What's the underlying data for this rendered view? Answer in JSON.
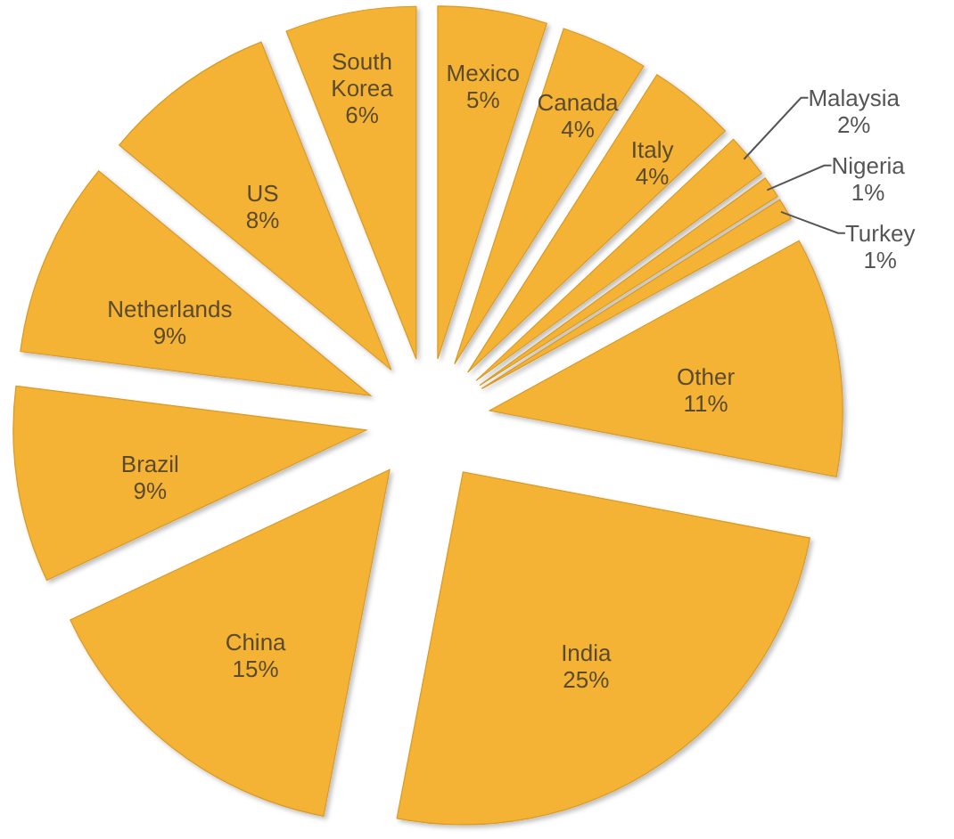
{
  "chart_data": {
    "type": "pie",
    "categories": [
      "Mexico",
      "Canada",
      "Italy",
      "Malaysia",
      "Nigeria",
      "Turkey",
      "Other",
      "India",
      "China",
      "Brazil",
      "Netherlands",
      "US",
      "South Korea"
    ],
    "values": [
      5,
      4,
      4,
      2,
      1,
      1,
      11,
      25,
      15,
      9,
      9,
      8,
      6
    ],
    "value_labels": [
      "5%",
      "4%",
      "4%",
      "2%",
      "1%",
      "1%",
      "11%",
      "25%",
      "15%",
      "9%",
      "9%",
      "8%",
      "6%"
    ],
    "colors": [
      "#f5b335",
      "#f5b335",
      "#f5b335",
      "#f5b335",
      "#f5b335",
      "#f5b335",
      "#f5b335",
      "#f5b335",
      "#f5b335",
      "#f5b335",
      "#f5b335",
      "#f5b335",
      "#f5b335"
    ]
  }
}
